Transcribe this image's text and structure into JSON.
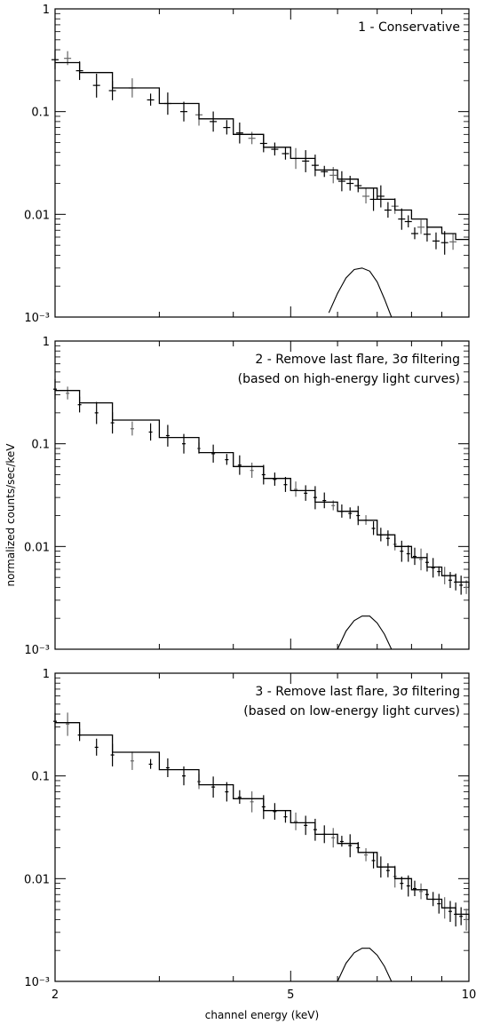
{
  "chart_data": {
    "type": "line",
    "x_scale": "log",
    "y_scale": "log",
    "xlim": [
      2,
      10
    ],
    "ylim": [
      0.001,
      1
    ],
    "xlabel": "channel energy (keV)",
    "ylabel": "normalized counts/sec/keV",
    "x_ticks": [
      {
        "value": 2,
        "label": "2"
      },
      {
        "value": 5,
        "label": "5"
      },
      {
        "value": 10,
        "label": "10"
      }
    ],
    "y_ticks": [
      {
        "value": 1,
        "label": "1"
      },
      {
        "value": 0.1,
        "label": "0.1"
      },
      {
        "value": 0.01,
        "label": "0.01"
      },
      {
        "value": 0.001,
        "label": "10⁻³"
      }
    ],
    "panels": [
      {
        "label": "1 - Conservative",
        "model": {
          "x": [
            2.0,
            2.2,
            2.5,
            3.0,
            3.5,
            4.0,
            4.5,
            5.0,
            5.5,
            6.0,
            6.5,
            7.0,
            7.5,
            8.0,
            8.5,
            9.0,
            9.5
          ],
          "y": [
            0.3,
            0.24,
            0.17,
            0.12,
            0.085,
            0.06,
            0.045,
            0.035,
            0.027,
            0.022,
            0.018,
            0.014,
            0.011,
            0.009,
            0.0075,
            0.0065,
            0.0057
          ]
        },
        "line_component": {
          "x": [
            5.8,
            6.0,
            6.2,
            6.4,
            6.6,
            6.8,
            7.0,
            7.2,
            7.4
          ],
          "y": [
            0.0011,
            0.0017,
            0.0024,
            0.0029,
            0.003,
            0.0028,
            0.0022,
            0.0015,
            0.001
          ]
        },
        "data": {
          "x": [
            2.0,
            2.1,
            2.2,
            2.35,
            2.5,
            2.7,
            2.9,
            3.1,
            3.3,
            3.5,
            3.7,
            3.9,
            4.1,
            4.3,
            4.5,
            4.7,
            4.9,
            5.1,
            5.3,
            5.5,
            5.7,
            5.9,
            6.1,
            6.3,
            6.5,
            6.7,
            6.9,
            7.1,
            7.3,
            7.5,
            7.7,
            7.9,
            8.1,
            8.3,
            8.5,
            8.8,
            9.1,
            9.4
          ],
          "y": [
            0.32,
            0.33,
            0.25,
            0.18,
            0.16,
            0.17,
            0.13,
            0.12,
            0.1,
            0.093,
            0.08,
            0.07,
            0.062,
            0.055,
            0.049,
            0.043,
            0.039,
            0.035,
            0.033,
            0.03,
            0.026,
            0.024,
            0.021,
            0.02,
            0.019,
            0.015,
            0.014,
            0.015,
            0.011,
            0.012,
            0.009,
            0.0085,
            0.0065,
            0.0075,
            0.0064,
            0.0055,
            0.0053,
            0.0054
          ]
        }
      },
      {
        "label": "2 - Remove last flare, 3σ filtering",
        "sublabel": "(based on high-energy light curves)",
        "model": {
          "x": [
            2.0,
            2.2,
            2.5,
            3.0,
            3.5,
            4.0,
            4.5,
            5.0,
            5.5,
            6.0,
            6.5,
            7.0,
            7.5,
            8.0,
            8.5,
            9.0,
            9.5,
            10.0
          ],
          "y": [
            0.33,
            0.25,
            0.17,
            0.115,
            0.082,
            0.06,
            0.046,
            0.035,
            0.027,
            0.022,
            0.018,
            0.013,
            0.01,
            0.0078,
            0.0063,
            0.0052,
            0.0045,
            0.004
          ]
        },
        "line_component": {
          "x": [
            6.0,
            6.2,
            6.4,
            6.6,
            6.8,
            7.0,
            7.2,
            7.4
          ],
          "y": [
            0.001,
            0.0015,
            0.0019,
            0.0021,
            0.0021,
            0.0018,
            0.0014,
            0.001
          ]
        },
        "data": {
          "x": [
            2.0,
            2.1,
            2.2,
            2.35,
            2.5,
            2.7,
            2.9,
            3.1,
            3.3,
            3.5,
            3.7,
            3.9,
            4.1,
            4.3,
            4.5,
            4.7,
            4.9,
            5.1,
            5.3,
            5.5,
            5.7,
            5.9,
            6.1,
            6.3,
            6.5,
            6.7,
            6.9,
            7.1,
            7.3,
            7.5,
            7.7,
            7.9,
            8.1,
            8.3,
            8.5,
            8.7,
            8.9,
            9.1,
            9.3,
            9.5,
            9.7,
            9.9
          ],
          "y": [
            0.34,
            0.31,
            0.24,
            0.2,
            0.16,
            0.14,
            0.13,
            0.12,
            0.1,
            0.09,
            0.08,
            0.07,
            0.062,
            0.055,
            0.05,
            0.045,
            0.04,
            0.036,
            0.033,
            0.03,
            0.028,
            0.025,
            0.022,
            0.021,
            0.02,
            0.018,
            0.015,
            0.013,
            0.012,
            0.0105,
            0.009,
            0.0085,
            0.008,
            0.0075,
            0.007,
            0.0062,
            0.0057,
            0.0052,
            0.0047,
            0.0045,
            0.0042,
            0.004
          ]
        }
      },
      {
        "label": "3 - Remove last flare, 3σ filtering",
        "sublabel": "(based on low-energy light curves)",
        "model": {
          "x": [
            2.0,
            2.2,
            2.5,
            3.0,
            3.5,
            4.0,
            4.5,
            5.0,
            5.5,
            6.0,
            6.5,
            7.0,
            7.5,
            8.0,
            8.5,
            9.0,
            9.5,
            10.0
          ],
          "y": [
            0.33,
            0.25,
            0.17,
            0.115,
            0.082,
            0.06,
            0.046,
            0.035,
            0.027,
            0.022,
            0.018,
            0.013,
            0.01,
            0.0078,
            0.0063,
            0.0052,
            0.0045,
            0.004
          ]
        },
        "line_component": {
          "x": [
            6.0,
            6.2,
            6.4,
            6.6,
            6.8,
            7.0,
            7.2,
            7.4
          ],
          "y": [
            0.001,
            0.0015,
            0.0019,
            0.0021,
            0.0021,
            0.0018,
            0.0014,
            0.001
          ]
        },
        "data": {
          "x": [
            2.0,
            2.1,
            2.2,
            2.35,
            2.5,
            2.7,
            2.9,
            3.1,
            3.3,
            3.5,
            3.7,
            3.9,
            4.1,
            4.3,
            4.5,
            4.7,
            4.9,
            5.1,
            5.3,
            5.5,
            5.7,
            5.9,
            6.1,
            6.3,
            6.5,
            6.7,
            6.9,
            7.1,
            7.3,
            7.5,
            7.7,
            7.9,
            8.1,
            8.3,
            8.5,
            8.7,
            8.9,
            9.1,
            9.3,
            9.5,
            9.7,
            9.9
          ],
          "y": [
            0.34,
            0.32,
            0.25,
            0.19,
            0.16,
            0.14,
            0.13,
            0.12,
            0.1,
            0.088,
            0.078,
            0.07,
            0.062,
            0.056,
            0.05,
            0.045,
            0.04,
            0.036,
            0.033,
            0.03,
            0.027,
            0.025,
            0.023,
            0.021,
            0.02,
            0.017,
            0.015,
            0.013,
            0.012,
            0.0105,
            0.009,
            0.0085,
            0.008,
            0.0075,
            0.007,
            0.0063,
            0.0057,
            0.0052,
            0.0048,
            0.0045,
            0.0043,
            0.004
          ]
        }
      }
    ]
  }
}
